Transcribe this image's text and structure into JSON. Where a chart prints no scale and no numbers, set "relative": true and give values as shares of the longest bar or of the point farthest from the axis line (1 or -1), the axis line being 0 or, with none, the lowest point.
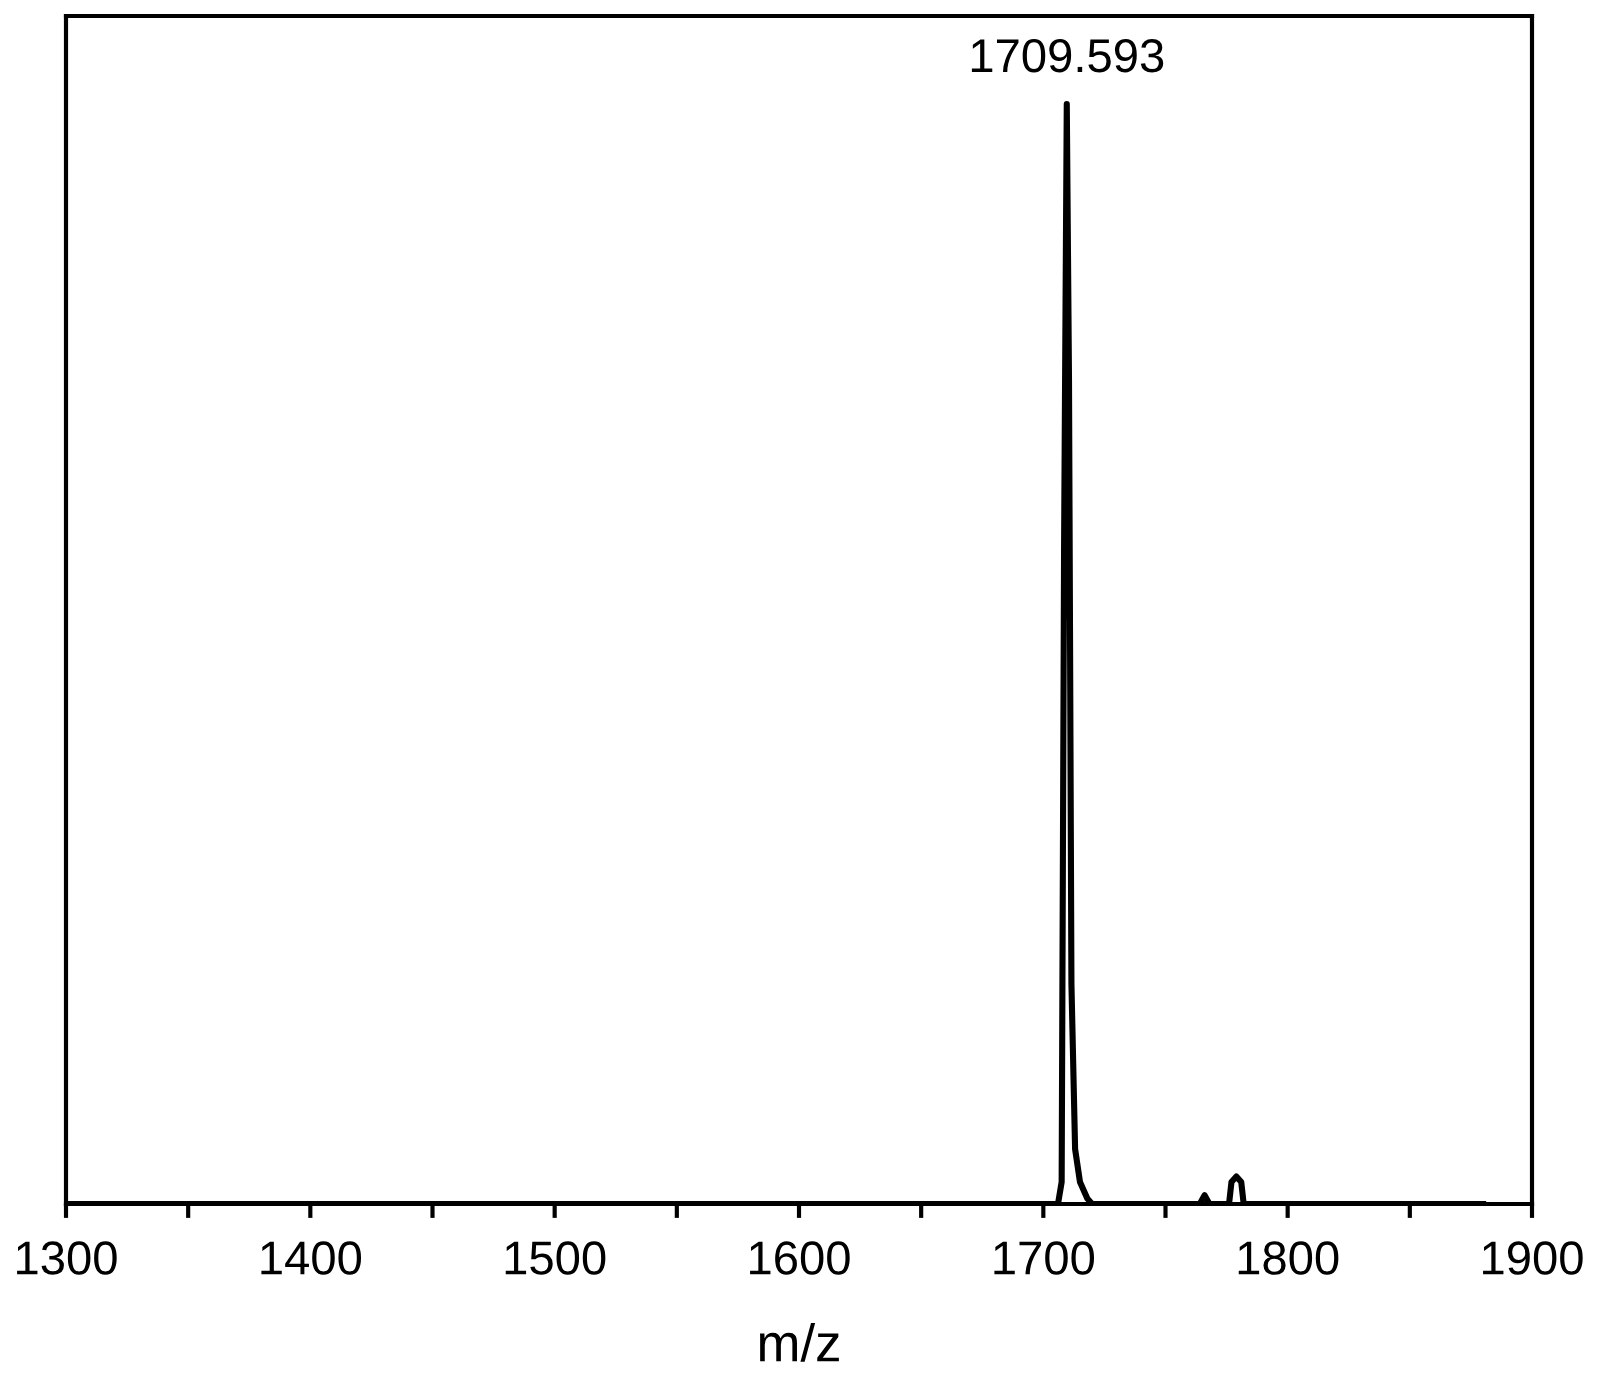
{
  "chart_data": {
    "type": "line",
    "relative": true,
    "xlabel": "m/z",
    "x": [
      1300,
      1400,
      1500,
      1600,
      1700,
      1706,
      1707.5,
      1708.5,
      1709.593,
      1710.5,
      1711.5,
      1713,
      1715,
      1718,
      1720,
      1764,
      1766,
      1768,
      1776,
      1777,
      1779,
      1781,
      1782,
      1880
    ],
    "series": [
      {
        "color": "#000000",
        "values": [
          0,
          0,
          0,
          0,
          0,
          0,
          0.02,
          0.6,
          1,
          0.75,
          0.2,
          0.05,
          0.02,
          0.005,
          0,
          0,
          0.008,
          0,
          0,
          0.02,
          0.025,
          0.02,
          0,
          0
        ]
      }
    ],
    "xlim": [
      1300,
      1900
    ],
    "xticks": [
      1300,
      {
        "value": 1350,
        "label": null
      },
      1400,
      {
        "value": 1450,
        "label": null
      },
      1500,
      {
        "value": 1550,
        "label": null
      },
      1600,
      {
        "value": 1650,
        "label": null
      },
      1700,
      {
        "value": 1750,
        "label": null
      },
      1800,
      {
        "value": 1850,
        "label": null
      },
      1900
    ],
    "tick_labels": "x",
    "grid": false,
    "marker": "none",
    "line_style": "solid",
    "annotations": [
      {
        "text": "1709.593",
        "x": 1709.593,
        "y": 1
      }
    ]
  }
}
